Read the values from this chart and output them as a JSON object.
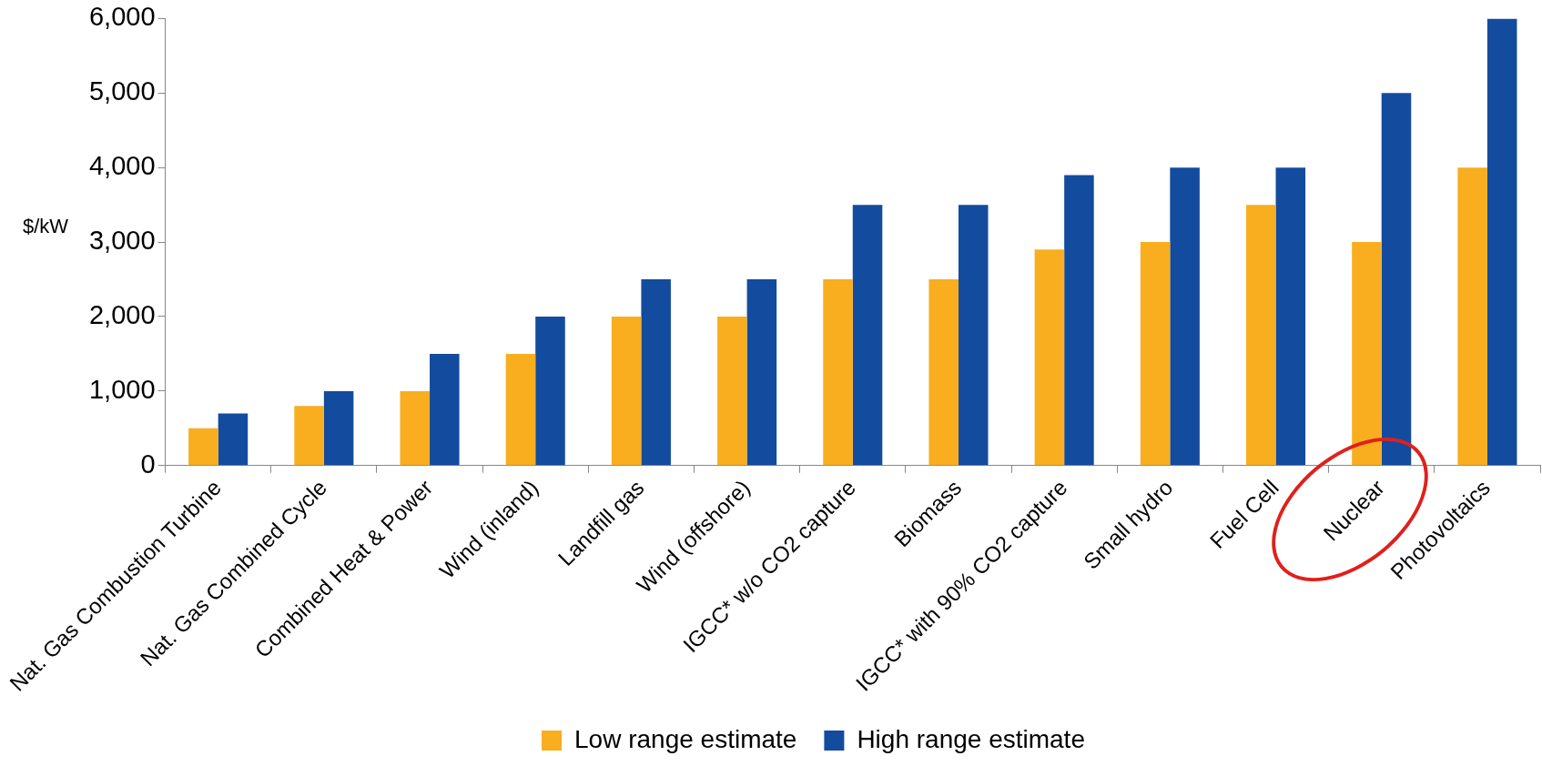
{
  "chart_data": {
    "type": "bar",
    "ylabel": "$/kW",
    "categories": [
      "Nat. Gas Combustion Turbine",
      "Nat. Gas Combined Cycle",
      "Combined Heat & Power",
      "Wind (inland)",
      "Landfill gas",
      "Wind (offshore)",
      "IGCC* w/o CO2 capture",
      "Biomass",
      "IGCC* with 90% CO2 capture",
      "Small hydro",
      "Fuel Cell",
      "Nuclear",
      "Photovoltaics"
    ],
    "series": [
      {
        "name": "Low range estimate",
        "color": "#f8ae1e",
        "values": [
          500,
          800,
          1000,
          1500,
          2000,
          2000,
          2500,
          2500,
          2900,
          3000,
          3500,
          3000,
          4000
        ]
      },
      {
        "name": "High range estimate",
        "color": "#134b9e",
        "values": [
          700,
          1000,
          1500,
          2000,
          2500,
          2500,
          3500,
          3500,
          3900,
          4000,
          4000,
          5000,
          6000
        ]
      }
    ],
    "ylim": [
      0,
      6000
    ],
    "yticks": [
      0,
      {
        "value": 1000,
        "label": "1,000"
      },
      {
        "value": 2000,
        "label": "2,000"
      },
      {
        "value": 3000,
        "label": "3,000"
      },
      {
        "value": 4000,
        "label": "4,000"
      },
      {
        "value": 5000,
        "label": "5,000"
      },
      {
        "value": 6000,
        "label": "6,000"
      }
    ],
    "grid": false,
    "legend": "bottom"
  }
}
